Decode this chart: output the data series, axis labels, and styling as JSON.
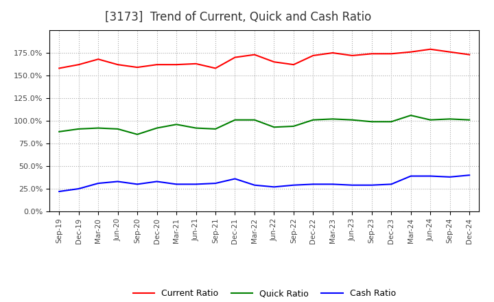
{
  "title": "[3173]  Trend of Current, Quick and Cash Ratio",
  "x_labels": [
    "Sep-19",
    "Dec-19",
    "Mar-20",
    "Jun-20",
    "Sep-20",
    "Dec-20",
    "Mar-21",
    "Jun-21",
    "Sep-21",
    "Dec-21",
    "Mar-22",
    "Jun-22",
    "Sep-22",
    "Dec-22",
    "Mar-23",
    "Jun-23",
    "Sep-23",
    "Dec-23",
    "Mar-24",
    "Jun-24",
    "Sep-24",
    "Dec-24"
  ],
  "current_ratio": [
    1.58,
    1.62,
    1.68,
    1.62,
    1.59,
    1.62,
    1.62,
    1.63,
    1.58,
    1.7,
    1.73,
    1.65,
    1.62,
    1.72,
    1.75,
    1.72,
    1.74,
    1.74,
    1.76,
    1.79,
    1.76,
    1.73
  ],
  "quick_ratio": [
    0.88,
    0.91,
    0.92,
    0.91,
    0.85,
    0.92,
    0.96,
    0.92,
    0.91,
    1.01,
    1.01,
    0.93,
    0.94,
    1.01,
    1.02,
    1.01,
    0.99,
    0.99,
    1.06,
    1.01,
    1.02,
    1.01
  ],
  "cash_ratio": [
    0.22,
    0.25,
    0.31,
    0.33,
    0.3,
    0.33,
    0.3,
    0.3,
    0.31,
    0.36,
    0.29,
    0.27,
    0.29,
    0.3,
    0.3,
    0.29,
    0.29,
    0.3,
    0.39,
    0.39,
    0.38,
    0.4
  ],
  "current_color": "#ff0000",
  "quick_color": "#008000",
  "cash_color": "#0000ff",
  "ylim": [
    0.0,
    2.0
  ],
  "yticks": [
    0.0,
    0.25,
    0.5,
    0.75,
    1.0,
    1.25,
    1.5,
    1.75
  ],
  "ytick_labels": [
    "0.0%",
    "25.0%",
    "50.0%",
    "75.0%",
    "100.0%",
    "125.0%",
    "150.0%",
    "175.0%"
  ],
  "background_color": "#ffffff",
  "plot_bg_color": "#ffffff",
  "grid_color": "#aaaaaa",
  "title_fontsize": 12,
  "legend_labels": [
    "Current Ratio",
    "Quick Ratio",
    "Cash Ratio"
  ]
}
